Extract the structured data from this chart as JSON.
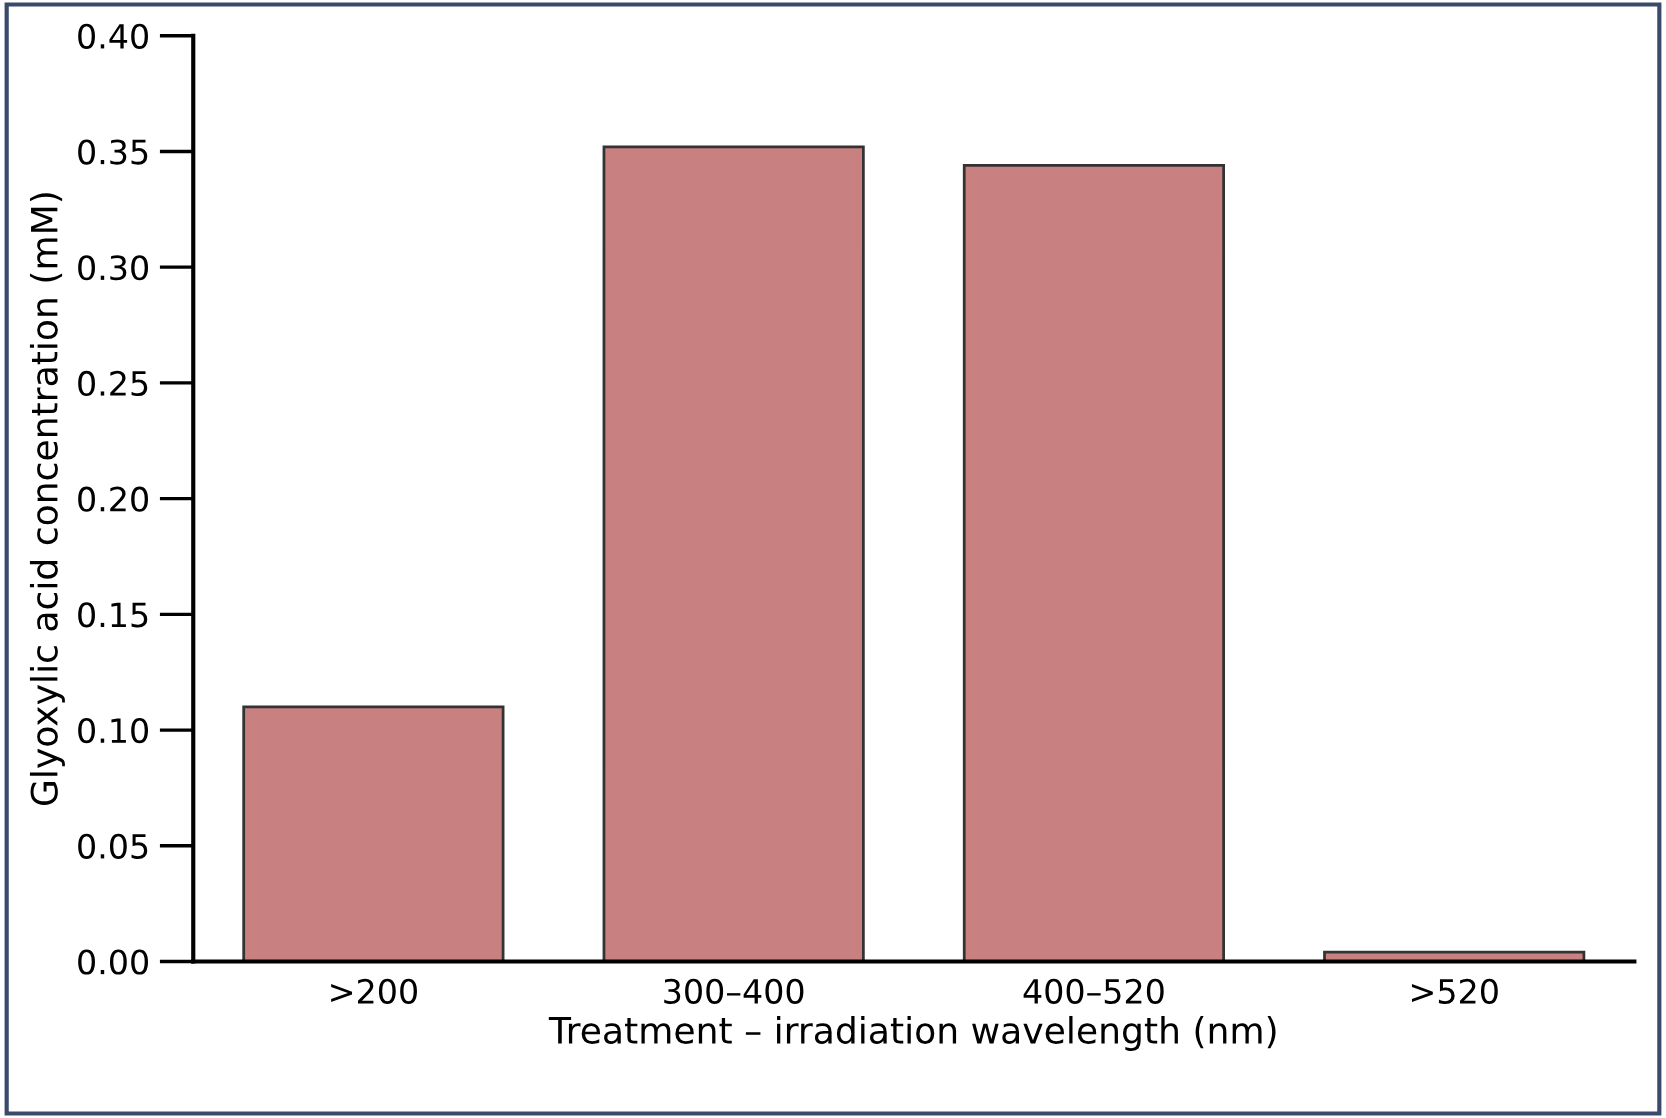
{
  "chart_data": {
    "type": "bar",
    "categories": [
      ">200",
      "300–400",
      "400–520",
      ">520"
    ],
    "values": [
      0.11,
      0.352,
      0.344,
      0.004
    ],
    "color": "#c98080",
    "xlabel": "Treatment – irradiation wavelength (nm)",
    "ylabel": "Glyoxylic acid concentration (mM)",
    "ylim": [
      0,
      0.4
    ],
    "yticks": [
      {
        "value": 0,
        "label": "0.00"
      },
      {
        "value": 0.05,
        "label": "0.05"
      },
      {
        "value": 0.1,
        "label": "0.10"
      },
      {
        "value": 0.15,
        "label": "0.15"
      },
      {
        "value": 0.2,
        "label": "0.20"
      },
      {
        "value": 0.25,
        "label": "0.25"
      },
      {
        "value": 0.3,
        "label": "0.30"
      },
      {
        "value": 0.35,
        "label": "0.35"
      },
      {
        "value": 0.4,
        "label": "0.40"
      }
    ],
    "grid": false,
    "legend": false
  }
}
